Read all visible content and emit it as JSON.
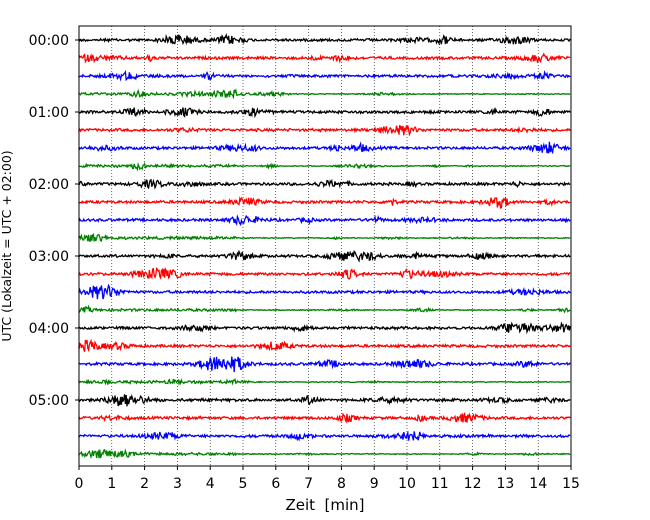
{
  "chart_data": {
    "type": "line",
    "title": "",
    "xlabel": "Zeit  [min]",
    "ylabel": "UTC (Lokalzeit = UTC + 02:00)",
    "xlim": [
      0,
      15
    ],
    "x_ticks": [
      "0",
      "1",
      "2",
      "3",
      "4",
      "5",
      "6",
      "7",
      "8",
      "9",
      "10",
      "11",
      "12",
      "13",
      "14",
      "15"
    ],
    "y_ticks": [
      "00:00",
      "01:00",
      "02:00",
      "03:00",
      "04:00",
      "05:00"
    ],
    "grid": "vertical dotted",
    "trace_colors": [
      "#000000",
      "#ff0000",
      "#0000ff",
      "#008000"
    ],
    "trace_count": 24,
    "trace_interval_minutes": 15,
    "traces": [
      {
        "start": "00:00",
        "color": "#000000"
      },
      {
        "start": "00:15",
        "color": "#ff0000"
      },
      {
        "start": "00:30",
        "color": "#0000ff"
      },
      {
        "start": "00:45",
        "color": "#008000"
      },
      {
        "start": "01:00",
        "color": "#000000"
      },
      {
        "start": "01:15",
        "color": "#ff0000"
      },
      {
        "start": "01:30",
        "color": "#0000ff"
      },
      {
        "start": "01:45",
        "color": "#008000"
      },
      {
        "start": "02:00",
        "color": "#000000"
      },
      {
        "start": "02:15",
        "color": "#ff0000"
      },
      {
        "start": "02:30",
        "color": "#0000ff"
      },
      {
        "start": "02:45",
        "color": "#008000"
      },
      {
        "start": "03:00",
        "color": "#000000"
      },
      {
        "start": "03:15",
        "color": "#ff0000"
      },
      {
        "start": "03:30",
        "color": "#0000ff"
      },
      {
        "start": "03:45",
        "color": "#008000"
      },
      {
        "start": "04:00",
        "color": "#000000"
      },
      {
        "start": "04:15",
        "color": "#ff0000"
      },
      {
        "start": "04:30",
        "color": "#0000ff"
      },
      {
        "start": "04:45",
        "color": "#008000"
      },
      {
        "start": "05:00",
        "color": "#000000"
      },
      {
        "start": "05:15",
        "color": "#ff0000"
      },
      {
        "start": "05:30",
        "color": "#0000ff"
      },
      {
        "start": "05:45",
        "color": "#008000"
      }
    ]
  }
}
